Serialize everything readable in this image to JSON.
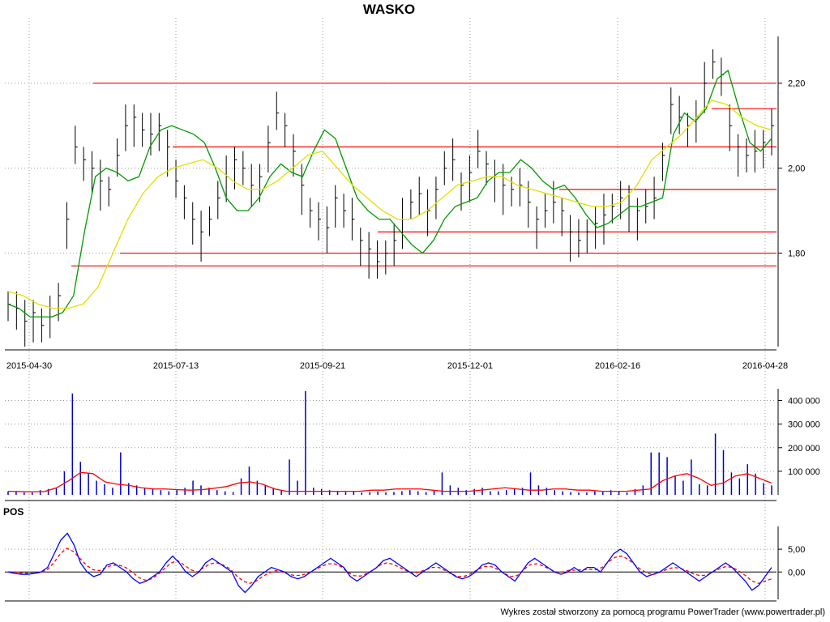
{
  "title": "WASKO",
  "footer": "Wykres został stworzony za pomocą programu PowerTrader (www.powertrader.pl)",
  "colors": {
    "price": "#000000",
    "sma_short": "#009900",
    "sma_long": "#e0e000",
    "hline": "#ff0000",
    "volume": "#0000cc",
    "volume_avg": "#ff0000",
    "pos": "#0000ff",
    "pos_signal": "#ff0000",
    "grid": "#9a9a9a"
  },
  "chart_data": [
    {
      "type": "line",
      "title": "WASKO",
      "panel": "price",
      "x_ticks": [
        "2015-04-30",
        "2015-07-13",
        "2015-09-21",
        "2015-12-01",
        "2016-02-16",
        "2016-04-28"
      ],
      "y_ticks": [
        "1,80",
        "2,00",
        "2,20"
      ],
      "ylim": [
        1.58,
        2.31
      ],
      "series": [
        {
          "name": "",
          "style": "hlc-bars",
          "values": [
            1.68,
            1.67,
            1.64,
            1.66,
            1.63,
            1.65,
            1.7,
            1.88,
            2.05,
            2.02,
            2.0,
            1.97,
            1.95,
            2.03,
            2.1,
            2.12,
            2.09,
            2.08,
            2.1,
            2.05,
            1.97,
            1.93,
            1.88,
            1.85,
            1.88,
            1.93,
            1.98,
            2.02,
            2.0,
            1.96,
            1.98,
            2.06,
            2.13,
            2.1,
            2.04,
            1.96,
            1.9,
            1.88,
            1.86,
            1.93,
            1.9,
            1.88,
            1.83,
            1.81,
            1.78,
            1.8,
            1.83,
            1.88,
            1.92,
            1.94,
            1.9,
            1.95,
            2.0,
            2.02,
            1.96,
            1.99,
            2.04,
            2.01,
            1.98,
            1.96,
            1.95,
            1.96,
            1.92,
            1.88,
            1.9,
            1.92,
            1.9,
            1.85,
            1.83,
            1.85,
            1.87,
            1.89,
            1.91,
            1.93,
            1.91,
            1.9,
            1.91,
            1.93,
            2.03,
            2.15,
            2.12,
            2.1,
            2.12,
            2.2,
            2.25,
            2.22,
            2.1,
            2.05,
            2.03,
            2.04,
            2.06,
            2.1
          ]
        },
        {
          "name": "",
          "style": "line",
          "values": [
            1.68,
            1.67,
            1.65,
            1.65,
            1.65,
            1.66,
            1.7,
            1.85,
            1.98,
            2.0,
            1.99,
            1.97,
            1.98,
            2.05,
            2.09,
            2.1,
            2.09,
            2.08,
            2.06,
            2.0,
            1.93,
            1.9,
            1.9,
            1.93,
            1.98,
            2.01,
            1.99,
            1.98,
            2.04,
            2.09,
            2.07,
            2.0,
            1.93,
            1.9,
            1.88,
            1.88,
            1.85,
            1.82,
            1.8,
            1.83,
            1.88,
            1.91,
            1.92,
            1.93,
            1.97,
            1.99,
            1.99,
            2.02,
            2.0,
            1.97,
            1.95,
            1.96,
            1.93,
            1.89,
            1.86,
            1.87,
            1.89,
            1.91,
            1.91,
            1.92,
            1.93,
            2.08,
            2.13,
            2.11,
            2.14,
            2.21,
            2.23,
            2.14,
            2.06,
            2.04,
            2.07
          ]
        },
        {
          "name": "",
          "style": "line",
          "values": [
            1.71,
            1.7,
            1.68,
            1.67,
            1.67,
            1.68,
            1.72,
            1.8,
            1.88,
            1.94,
            1.98,
            2.0,
            2.01,
            2.02,
            2.0,
            1.97,
            1.95,
            1.95,
            1.97,
            2.0,
            2.03,
            2.04,
            2.0,
            1.96,
            1.93,
            1.9,
            1.88,
            1.88,
            1.9,
            1.93,
            1.96,
            1.97,
            1.98,
            1.98,
            1.96,
            1.95,
            1.94,
            1.93,
            1.92,
            1.91,
            1.91,
            1.92,
            1.96,
            2.02,
            2.05,
            2.08,
            2.12,
            2.16,
            2.15,
            2.12,
            2.1,
            2.09
          ]
        }
      ],
      "levels": [
        2.2,
        2.05,
        1.95,
        1.85,
        1.8,
        1.77,
        2.14
      ]
    },
    {
      "type": "bar",
      "panel": "volume",
      "y_ticks": [
        "100 000",
        "200 000",
        "300 000",
        "400 000"
      ],
      "ylim": [
        0,
        450000
      ],
      "series": [
        {
          "name": "",
          "values": [
            15000,
            12000,
            10000,
            10000,
            20000,
            25000,
            30000,
            100000,
            430000,
            140000,
            90000,
            60000,
            45000,
            30000,
            180000,
            50000,
            40000,
            30000,
            25000,
            20000,
            15000,
            20000,
            30000,
            60000,
            40000,
            30000,
            20000,
            15000,
            12000,
            70000,
            120000,
            60000,
            40000,
            30000,
            20000,
            150000,
            60000,
            440000,
            30000,
            25000,
            20000,
            15000,
            12000,
            15000,
            10000,
            12000,
            15000,
            10000,
            12000,
            15000,
            20000,
            15000,
            12000,
            20000,
            95000,
            40000,
            30000,
            20000,
            25000,
            30000,
            15000,
            15000,
            20000,
            25000,
            30000,
            95000,
            40000,
            30000,
            20000,
            15000,
            12000,
            10000,
            10000,
            15000,
            12000,
            20000,
            15000,
            10000,
            25000,
            40000,
            180000,
            180000,
            160000,
            80000,
            60000,
            150000,
            45000,
            40000,
            260000,
            190000,
            95000,
            70000,
            130000,
            90000,
            50000,
            40000
          ]
        },
        {
          "name": "",
          "style": "line",
          "values": [
            15000,
            14000,
            13000,
            14000,
            30000,
            60000,
            95000,
            90000,
            55000,
            45000,
            40000,
            30000,
            25000,
            25000,
            22000,
            20000,
            22000,
            28000,
            35000,
            50000,
            55000,
            45000,
            25000,
            15000,
            15000,
            15000,
            15000,
            15000,
            15000,
            15000,
            20000,
            20000,
            25000,
            25000,
            25000,
            20000,
            15000,
            15000,
            15000,
            20000,
            25000,
            30000,
            25000,
            20000,
            20000,
            25000,
            25000,
            20000,
            20000,
            15000,
            15000,
            15000,
            20000,
            25000,
            60000,
            80000,
            90000,
            70000,
            40000,
            50000,
            80000,
            90000,
            70000,
            50000
          ]
        }
      ]
    },
    {
      "type": "line",
      "panel": "POS",
      "title": "POS",
      "y_ticks": [
        "0,00",
        "5,00"
      ],
      "ylim": [
        -6,
        10
      ],
      "series": [
        {
          "name": "",
          "values": [
            0,
            -0.3,
            -0.5,
            -0.5,
            -0.3,
            0,
            1,
            4,
            7,
            8.5,
            6,
            2,
            0,
            -1,
            -0.5,
            1.5,
            2,
            1,
            0,
            -1.5,
            -2.5,
            -2,
            -1,
            0,
            2,
            3.5,
            2,
            0,
            -1,
            0,
            2,
            3,
            2,
            1,
            0,
            -3,
            -4.5,
            -3,
            -1,
            0,
            1,
            0.5,
            0,
            -1,
            -1.5,
            -1,
            0,
            1,
            2,
            3,
            2,
            1,
            -1,
            -2,
            -1,
            0,
            1,
            2.5,
            3,
            2,
            1,
            0,
            -1,
            0,
            1,
            2,
            1,
            0,
            -1,
            -1.5,
            -1,
            0,
            1.5,
            2,
            1.5,
            0,
            -1,
            -2,
            0,
            2,
            3,
            2,
            1,
            0,
            -0.5,
            0,
            1,
            0,
            1,
            1,
            0,
            2,
            4,
            5,
            4,
            2,
            0,
            -1,
            -0.5,
            0,
            1,
            2,
            1,
            0,
            -1,
            -2,
            -1,
            0,
            1,
            2,
            1,
            -0.5,
            -2,
            -4,
            -3,
            -1,
            1
          ]
        },
        {
          "name": "",
          "style": "dashed",
          "values": [
            0,
            0,
            -0.2,
            -0.3,
            -0.3,
            -0.1,
            0.5,
            2,
            4,
            5.2,
            4.5,
            3,
            1.5,
            0.5,
            0.3,
            1,
            1.5,
            1.5,
            1,
            0,
            -1.2,
            -1.8,
            -1.5,
            -0.5,
            0.8,
            2,
            2.5,
            1.5,
            0.5,
            0,
            1,
            1.8,
            2,
            1.5,
            0.7,
            -0.8,
            -2,
            -2.5,
            -2,
            -1,
            -0.2,
            0.3,
            0,
            -0.5,
            -0.8,
            -0.7,
            -0.2,
            0.5,
            1.2,
            1.8,
            1.8,
            1.2,
            0,
            -0.8,
            -0.9,
            -0.3,
            0.5,
            1.5,
            2,
            1.7,
            1,
            0.3,
            -0.3,
            0,
            0.5,
            1,
            1,
            0.3,
            -0.5,
            -1,
            -0.9,
            -0.3,
            0.6,
            1.2,
            1.2,
            0.6,
            -0.3,
            -1,
            -0.8,
            0.5,
            1.6,
            1.8,
            1.3,
            0.6,
            0,
            0,
            0.4,
            0.4,
            0.5,
            0.6,
            0.5,
            1,
            2.2,
            3.2,
            3.5,
            2.8,
            1.6,
            0.5,
            -0.3,
            -0.5,
            0,
            0.6,
            1,
            0.8,
            0.3,
            -0.4,
            -0.8,
            -0.7,
            0,
            0.7,
            1.2,
            1,
            0.2,
            -0.8,
            -2,
            -2.5,
            -2,
            -1.5
          ]
        }
      ]
    }
  ]
}
